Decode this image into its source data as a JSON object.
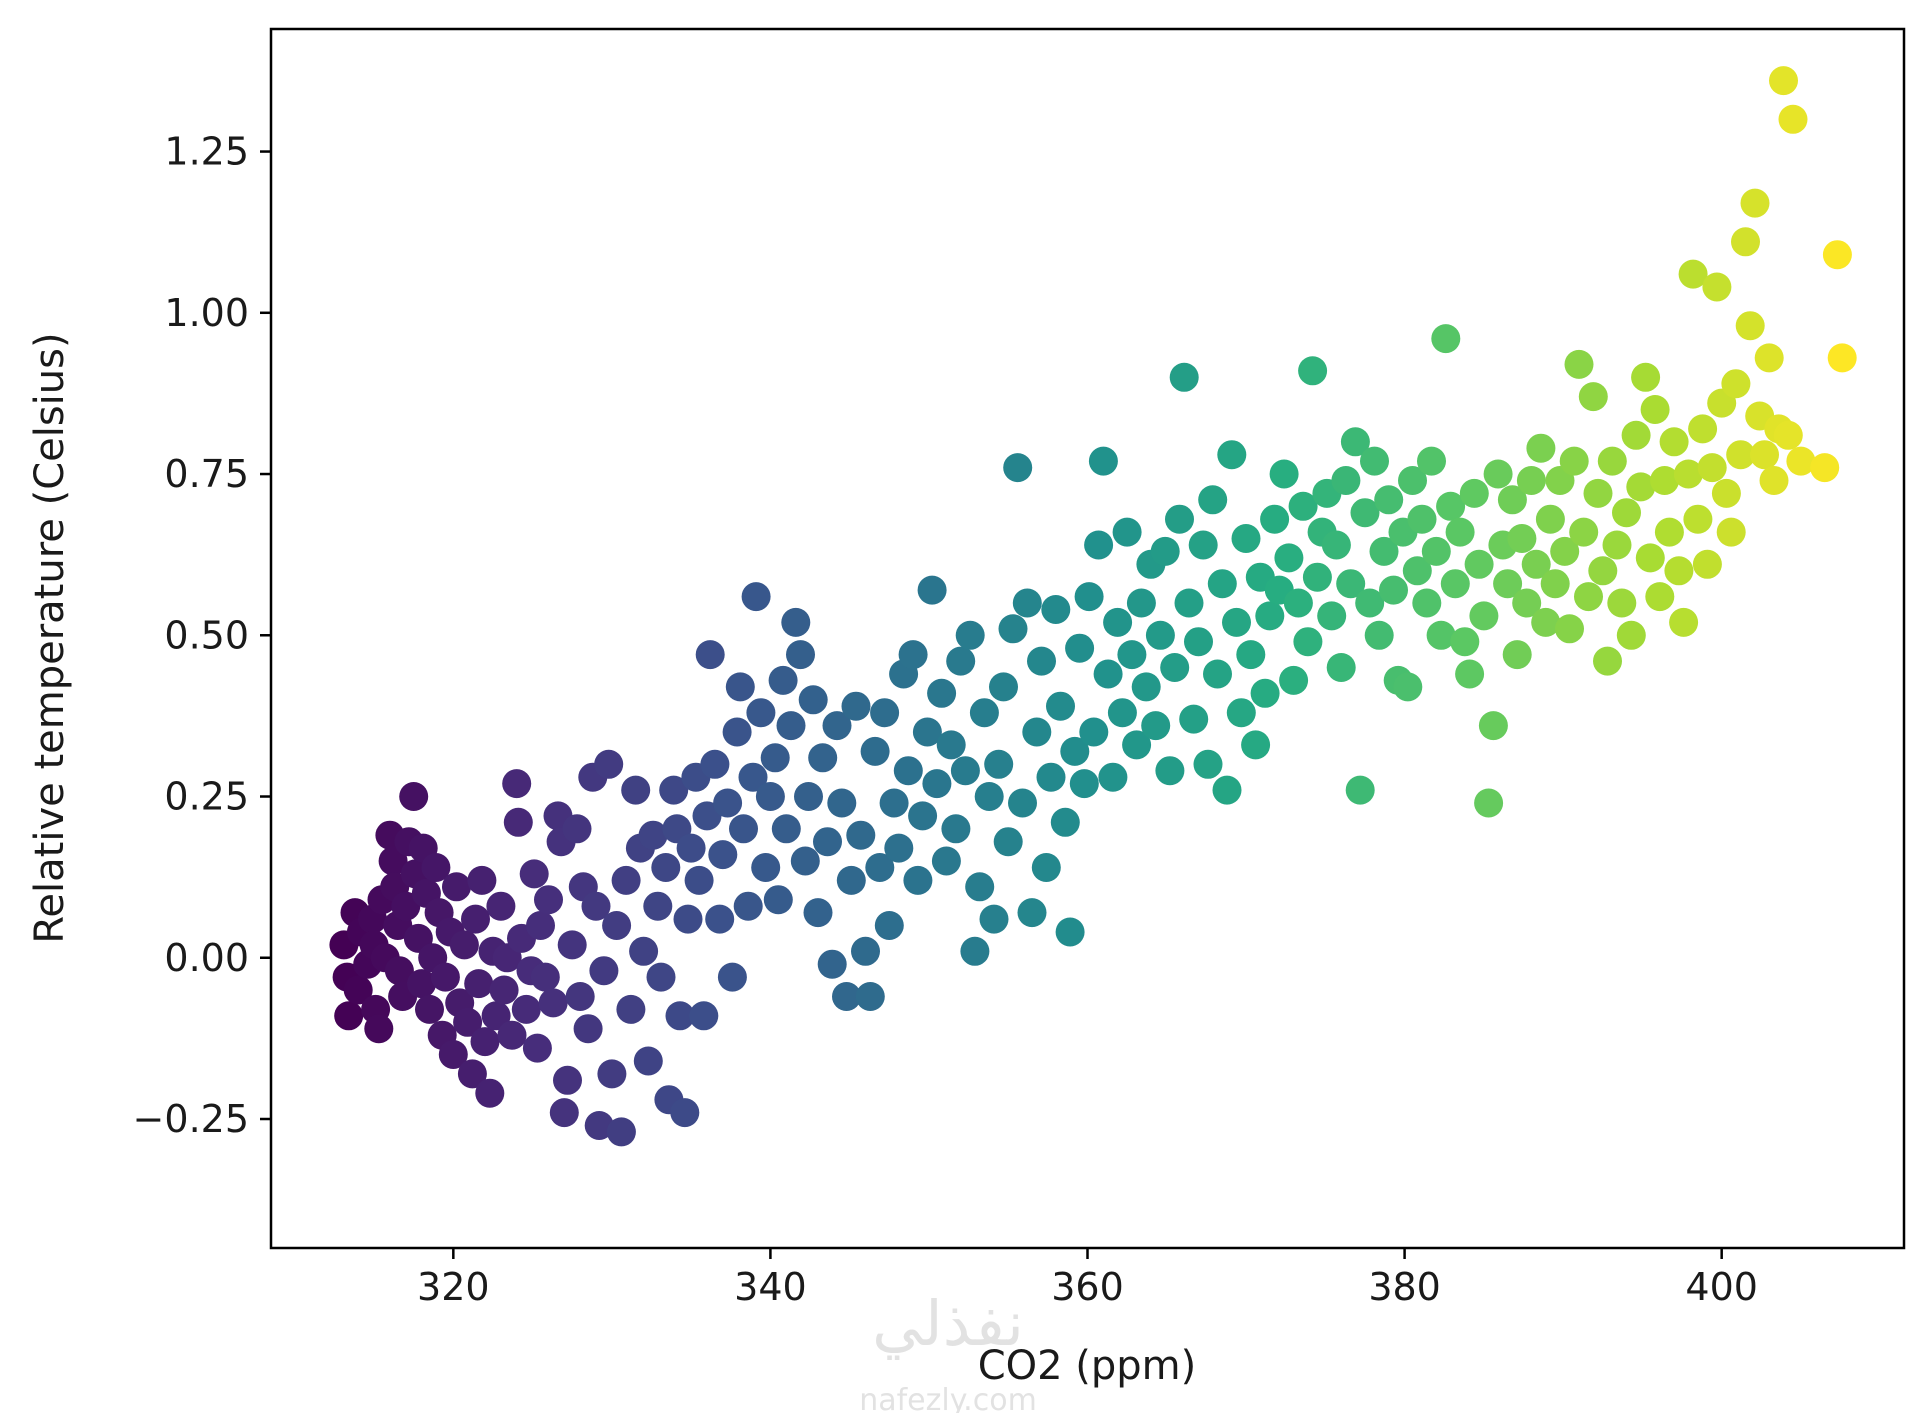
{
  "chart_data": {
    "type": "scatter",
    "title": "",
    "xlabel": "CO2 (ppm)",
    "ylabel": "Relative temperature (Celsius)",
    "xlim": [
      308.5,
      411.5
    ],
    "ylim": [
      -0.45,
      1.44
    ],
    "x_ticks": [
      320,
      340,
      360,
      380,
      400
    ],
    "y_ticks": [
      -0.25,
      0.0,
      0.25,
      0.5,
      0.75,
      1.0,
      1.25
    ],
    "x_tick_labels": [
      "320",
      "340",
      "360",
      "380",
      "400"
    ],
    "y_tick_labels": [
      "−0.25",
      "0.00",
      "0.25",
      "0.50",
      "0.75",
      "1.00",
      "1.25"
    ],
    "grid": false,
    "legend": "none",
    "colormap": "viridis",
    "color_by": "x",
    "colormap_stops": [
      "#440154",
      "#472c7a",
      "#3b518b",
      "#2c718e",
      "#21908d",
      "#27ad81",
      "#5cc863",
      "#aadc32",
      "#fde725"
    ],
    "points": [
      [
        313.1,
        0.02
      ],
      [
        313.3,
        -0.03
      ],
      [
        313.4,
        -0.09
      ],
      [
        313.8,
        0.07
      ],
      [
        314.0,
        -0.05
      ],
      [
        314.2,
        0.04
      ],
      [
        314.6,
        -0.01
      ],
      [
        314.9,
        0.06
      ],
      [
        315.1,
        -0.08
      ],
      [
        315.3,
        -0.11
      ],
      [
        315.0,
        0.02
      ],
      [
        315.5,
        0.09
      ],
      [
        315.7,
        0.0
      ],
      [
        316.0,
        0.19
      ],
      [
        316.2,
        0.15
      ],
      [
        316.3,
        0.11
      ],
      [
        316.5,
        0.05
      ],
      [
        316.6,
        -0.02
      ],
      [
        316.8,
        -0.06
      ],
      [
        317.0,
        0.08
      ],
      [
        317.2,
        0.18
      ],
      [
        317.5,
        0.25
      ],
      [
        317.6,
        0.13
      ],
      [
        317.8,
        0.03
      ],
      [
        318.0,
        -0.04
      ],
      [
        318.1,
        0.17
      ],
      [
        318.3,
        0.1
      ],
      [
        318.5,
        -0.08
      ],
      [
        318.7,
        0.0
      ],
      [
        318.9,
        0.14
      ],
      [
        319.1,
        0.07
      ],
      [
        319.3,
        -0.12
      ],
      [
        319.5,
        -0.03
      ],
      [
        319.8,
        0.04
      ],
      [
        320.0,
        -0.15
      ],
      [
        320.2,
        0.11
      ],
      [
        320.4,
        -0.07
      ],
      [
        320.7,
        0.02
      ],
      [
        320.9,
        -0.1
      ],
      [
        321.2,
        -0.18
      ],
      [
        321.4,
        0.06
      ],
      [
        321.6,
        -0.04
      ],
      [
        321.8,
        0.12
      ],
      [
        322.0,
        -0.13
      ],
      [
        322.3,
        -0.21
      ],
      [
        322.5,
        0.01
      ],
      [
        322.7,
        -0.09
      ],
      [
        323.0,
        0.08
      ],
      [
        323.2,
        -0.05
      ],
      [
        323.4,
        0.0
      ],
      [
        323.7,
        -0.12
      ],
      [
        324.0,
        0.27
      ],
      [
        324.1,
        0.21
      ],
      [
        324.3,
        0.03
      ],
      [
        324.6,
        -0.08
      ],
      [
        324.9,
        -0.02
      ],
      [
        325.1,
        0.13
      ],
      [
        325.3,
        -0.14
      ],
      [
        325.5,
        0.05
      ],
      [
        325.8,
        -0.03
      ],
      [
        326.0,
        0.09
      ],
      [
        326.3,
        -0.07
      ],
      [
        326.6,
        0.22
      ],
      [
        326.8,
        0.18
      ],
      [
        327.0,
        -0.24
      ],
      [
        327.2,
        -0.19
      ],
      [
        327.5,
        0.02
      ],
      [
        327.8,
        0.2
      ],
      [
        328.0,
        -0.06
      ],
      [
        328.2,
        0.11
      ],
      [
        328.5,
        -0.11
      ],
      [
        328.8,
        0.28
      ],
      [
        329.0,
        0.08
      ],
      [
        329.2,
        -0.26
      ],
      [
        329.5,
        -0.02
      ],
      [
        329.8,
        0.3
      ],
      [
        330.0,
        -0.18
      ],
      [
        330.3,
        0.05
      ],
      [
        330.6,
        -0.27
      ],
      [
        330.9,
        0.12
      ],
      [
        331.2,
        -0.08
      ],
      [
        331.5,
        0.26
      ],
      [
        331.8,
        0.17
      ],
      [
        332.0,
        0.01
      ],
      [
        332.3,
        -0.16
      ],
      [
        332.6,
        0.19
      ],
      [
        332.9,
        0.08
      ],
      [
        333.1,
        -0.03
      ],
      [
        333.4,
        0.14
      ],
      [
        333.6,
        -0.22
      ],
      [
        333.9,
        0.26
      ],
      [
        334.1,
        0.2
      ],
      [
        334.3,
        -0.09
      ],
      [
        334.6,
        -0.24
      ],
      [
        334.8,
        0.06
      ],
      [
        335.0,
        0.17
      ],
      [
        335.3,
        0.28
      ],
      [
        335.5,
        0.12
      ],
      [
        335.8,
        -0.09
      ],
      [
        336.0,
        0.22
      ],
      [
        336.2,
        0.47
      ],
      [
        336.5,
        0.3
      ],
      [
        336.8,
        0.06
      ],
      [
        337.0,
        0.16
      ],
      [
        337.3,
        0.24
      ],
      [
        337.6,
        -0.03
      ],
      [
        337.9,
        0.35
      ],
      [
        338.1,
        0.42
      ],
      [
        338.3,
        0.2
      ],
      [
        338.6,
        0.08
      ],
      [
        338.9,
        0.28
      ],
      [
        339.1,
        0.56
      ],
      [
        339.4,
        0.38
      ],
      [
        339.7,
        0.14
      ],
      [
        340.0,
        0.25
      ],
      [
        340.3,
        0.31
      ],
      [
        340.5,
        0.09
      ],
      [
        340.8,
        0.43
      ],
      [
        341.0,
        0.2
      ],
      [
        341.3,
        0.36
      ],
      [
        341.6,
        0.52
      ],
      [
        341.9,
        0.47
      ],
      [
        342.2,
        0.15
      ],
      [
        342.4,
        0.25
      ],
      [
        342.7,
        0.4
      ],
      [
        343.0,
        0.07
      ],
      [
        343.3,
        0.31
      ],
      [
        343.6,
        0.18
      ],
      [
        343.9,
        -0.01
      ],
      [
        344.2,
        0.36
      ],
      [
        344.5,
        0.24
      ],
      [
        344.8,
        -0.06
      ],
      [
        345.1,
        0.12
      ],
      [
        345.4,
        0.39
      ],
      [
        345.7,
        0.19
      ],
      [
        346.0,
        0.01
      ],
      [
        346.3,
        -0.06
      ],
      [
        346.6,
        0.32
      ],
      [
        346.9,
        0.14
      ],
      [
        347.2,
        0.38
      ],
      [
        347.5,
        0.05
      ],
      [
        347.8,
        0.24
      ],
      [
        348.1,
        0.17
      ],
      [
        348.4,
        0.44
      ],
      [
        348.7,
        0.29
      ],
      [
        349.0,
        0.47
      ],
      [
        349.3,
        0.12
      ],
      [
        349.6,
        0.22
      ],
      [
        349.9,
        0.35
      ],
      [
        350.2,
        0.57
      ],
      [
        350.5,
        0.27
      ],
      [
        350.8,
        0.41
      ],
      [
        351.1,
        0.15
      ],
      [
        351.4,
        0.33
      ],
      [
        351.7,
        0.2
      ],
      [
        352.0,
        0.46
      ],
      [
        352.3,
        0.29
      ],
      [
        352.6,
        0.5
      ],
      [
        352.9,
        0.01
      ],
      [
        353.2,
        0.11
      ],
      [
        353.5,
        0.38
      ],
      [
        353.8,
        0.25
      ],
      [
        354.1,
        0.06
      ],
      [
        354.4,
        0.3
      ],
      [
        354.7,
        0.42
      ],
      [
        355.0,
        0.18
      ],
      [
        355.3,
        0.51
      ],
      [
        355.6,
        0.76
      ],
      [
        355.9,
        0.24
      ],
      [
        356.2,
        0.55
      ],
      [
        356.5,
        0.07
      ],
      [
        356.8,
        0.35
      ],
      [
        357.1,
        0.46
      ],
      [
        357.4,
        0.14
      ],
      [
        357.7,
        0.28
      ],
      [
        358.0,
        0.54
      ],
      [
        358.3,
        0.39
      ],
      [
        358.6,
        0.21
      ],
      [
        358.9,
        0.04
      ],
      [
        359.2,
        0.32
      ],
      [
        359.5,
        0.48
      ],
      [
        359.8,
        0.27
      ],
      [
        360.1,
        0.56
      ],
      [
        360.4,
        0.35
      ],
      [
        360.7,
        0.64
      ],
      [
        361.0,
        0.77
      ],
      [
        361.3,
        0.44
      ],
      [
        361.6,
        0.28
      ],
      [
        361.9,
        0.52
      ],
      [
        362.2,
        0.38
      ],
      [
        362.5,
        0.66
      ],
      [
        362.8,
        0.47
      ],
      [
        363.1,
        0.33
      ],
      [
        363.4,
        0.55
      ],
      [
        363.7,
        0.42
      ],
      [
        364.0,
        0.61
      ],
      [
        364.3,
        0.36
      ],
      [
        364.6,
        0.5
      ],
      [
        364.9,
        0.63
      ],
      [
        365.2,
        0.29
      ],
      [
        365.5,
        0.45
      ],
      [
        365.8,
        0.68
      ],
      [
        366.1,
        0.9
      ],
      [
        366.4,
        0.55
      ],
      [
        366.7,
        0.37
      ],
      [
        367.0,
        0.49
      ],
      [
        367.3,
        0.64
      ],
      [
        367.6,
        0.3
      ],
      [
        367.9,
        0.71
      ],
      [
        368.2,
        0.44
      ],
      [
        368.5,
        0.58
      ],
      [
        368.8,
        0.26
      ],
      [
        369.1,
        0.78
      ],
      [
        369.4,
        0.52
      ],
      [
        369.7,
        0.38
      ],
      [
        370.0,
        0.65
      ],
      [
        370.3,
        0.47
      ],
      [
        370.6,
        0.33
      ],
      [
        370.9,
        0.59
      ],
      [
        371.2,
        0.41
      ],
      [
        371.5,
        0.53
      ],
      [
        371.8,
        0.68
      ],
      [
        372.1,
        0.57
      ],
      [
        372.4,
        0.75
      ],
      [
        372.7,
        0.62
      ],
      [
        373.0,
        0.43
      ],
      [
        373.3,
        0.55
      ],
      [
        373.6,
        0.7
      ],
      [
        373.9,
        0.49
      ],
      [
        374.2,
        0.91
      ],
      [
        374.5,
        0.59
      ],
      [
        374.8,
        0.66
      ],
      [
        375.1,
        0.72
      ],
      [
        375.4,
        0.53
      ],
      [
        375.7,
        0.64
      ],
      [
        376.0,
        0.45
      ],
      [
        376.3,
        0.74
      ],
      [
        376.6,
        0.58
      ],
      [
        376.9,
        0.8
      ],
      [
        377.2,
        0.26
      ],
      [
        377.5,
        0.69
      ],
      [
        377.8,
        0.55
      ],
      [
        378.1,
        0.77
      ],
      [
        378.4,
        0.5
      ],
      [
        378.7,
        0.63
      ],
      [
        379.0,
        0.71
      ],
      [
        379.3,
        0.57
      ],
      [
        379.6,
        0.43
      ],
      [
        379.9,
        0.66
      ],
      [
        380.2,
        0.42
      ],
      [
        380.5,
        0.74
      ],
      [
        380.8,
        0.6
      ],
      [
        381.1,
        0.68
      ],
      [
        381.4,
        0.55
      ],
      [
        381.7,
        0.77
      ],
      [
        382.0,
        0.63
      ],
      [
        382.3,
        0.5
      ],
      [
        382.6,
        0.96
      ],
      [
        382.9,
        0.7
      ],
      [
        383.2,
        0.58
      ],
      [
        383.5,
        0.66
      ],
      [
        383.8,
        0.49
      ],
      [
        384.1,
        0.44
      ],
      [
        384.4,
        0.72
      ],
      [
        384.7,
        0.61
      ],
      [
        385.0,
        0.53
      ],
      [
        385.3,
        0.24
      ],
      [
        385.6,
        0.36
      ],
      [
        385.9,
        0.75
      ],
      [
        386.2,
        0.64
      ],
      [
        386.5,
        0.58
      ],
      [
        386.8,
        0.71
      ],
      [
        387.1,
        0.47
      ],
      [
        387.4,
        0.65
      ],
      [
        387.7,
        0.55
      ],
      [
        388.0,
        0.74
      ],
      [
        388.3,
        0.61
      ],
      [
        388.6,
        0.79
      ],
      [
        388.9,
        0.52
      ],
      [
        389.2,
        0.68
      ],
      [
        389.5,
        0.58
      ],
      [
        389.8,
        0.74
      ],
      [
        390.1,
        0.63
      ],
      [
        390.4,
        0.51
      ],
      [
        390.7,
        0.77
      ],
      [
        391.0,
        0.92
      ],
      [
        391.3,
        0.66
      ],
      [
        391.6,
        0.56
      ],
      [
        391.9,
        0.87
      ],
      [
        392.2,
        0.72
      ],
      [
        392.5,
        0.6
      ],
      [
        392.8,
        0.46
      ],
      [
        393.1,
        0.77
      ],
      [
        393.4,
        0.64
      ],
      [
        393.7,
        0.55
      ],
      [
        394.0,
        0.69
      ],
      [
        394.3,
        0.5
      ],
      [
        394.6,
        0.81
      ],
      [
        394.9,
        0.73
      ],
      [
        395.2,
        0.9
      ],
      [
        395.5,
        0.62
      ],
      [
        395.8,
        0.85
      ],
      [
        396.1,
        0.56
      ],
      [
        396.4,
        0.74
      ],
      [
        396.7,
        0.66
      ],
      [
        397.0,
        0.8
      ],
      [
        397.3,
        0.6
      ],
      [
        397.6,
        0.52
      ],
      [
        397.9,
        0.75
      ],
      [
        398.2,
        1.06
      ],
      [
        398.5,
        0.68
      ],
      [
        398.8,
        0.82
      ],
      [
        399.1,
        0.61
      ],
      [
        399.4,
        0.76
      ],
      [
        399.7,
        1.04
      ],
      [
        400.0,
        0.86
      ],
      [
        400.3,
        0.72
      ],
      [
        400.6,
        0.66
      ],
      [
        400.9,
        0.89
      ],
      [
        401.2,
        0.78
      ],
      [
        401.5,
        1.11
      ],
      [
        401.8,
        0.98
      ],
      [
        402.1,
        1.17
      ],
      [
        402.4,
        0.84
      ],
      [
        402.7,
        0.78
      ],
      [
        403.0,
        0.93
      ],
      [
        403.3,
        0.74
      ],
      [
        403.6,
        0.82
      ],
      [
        403.9,
        1.36
      ],
      [
        404.2,
        0.81
      ],
      [
        404.5,
        1.3
      ],
      [
        405.0,
        0.77
      ],
      [
        406.5,
        0.76
      ],
      [
        407.3,
        1.09
      ],
      [
        407.6,
        0.93
      ]
    ]
  },
  "watermark": {
    "arabic": "نفذلي",
    "latin": "nafezly.com"
  }
}
